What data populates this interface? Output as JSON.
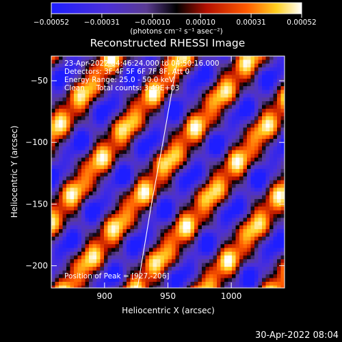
{
  "chart_data": {
    "type": "heatmap",
    "title": "Reconstructed RHESSI Image",
    "xlabel": "Heliocentric X (arcsec)",
    "ylabel": "Heliocentric Y (arcsec)",
    "xlim": [
      858,
      1042
    ],
    "ylim": [
      -218,
      -30
    ],
    "x_ticks": [
      900,
      950,
      1000
    ],
    "x_tick_labels": [
      "900",
      "950",
      "1000"
    ],
    "y_ticks": [
      -50,
      -100,
      -150,
      -200
    ],
    "y_tick_labels": [
      "−50",
      "−100",
      "−150",
      "−200"
    ],
    "colorbar": {
      "range": [
        -0.00052,
        0.00052
      ],
      "colormap": "blue-purple-black-red-yellow-white",
      "ticks": [
        -0.00052,
        -0.00031,
        -0.0001,
        0.0001,
        0.00031,
        0.00052
      ],
      "tick_labels": [
        "−0.00052",
        "−0.00031",
        "−0.00010",
        "0.00010",
        "0.00031",
        "0.00052"
      ],
      "units_label": "(photons cm⁻² s⁻¹ asec⁻²)"
    },
    "annotations": [
      "23-Apr-2022 04:46:24.000 to 04:50:16.000",
      "Detectors: 3F 4F 5F 6F 7F 8F, Att 0",
      "Energy Range: 25.0 - 50.0 keV",
      "Clean     Total counts: 3.49E+03"
    ],
    "peak_label": "Position of Peak = [927,-206]",
    "peak_position": [
      927,
      -206
    ],
    "limb_line": [
      [
        926,
        -218
      ],
      [
        937,
        -150
      ],
      [
        946,
        -100
      ],
      [
        958,
        -30
      ]
    ],
    "grid": false
  },
  "footer": {
    "timestamp": "30-Apr-2022 08:04"
  }
}
